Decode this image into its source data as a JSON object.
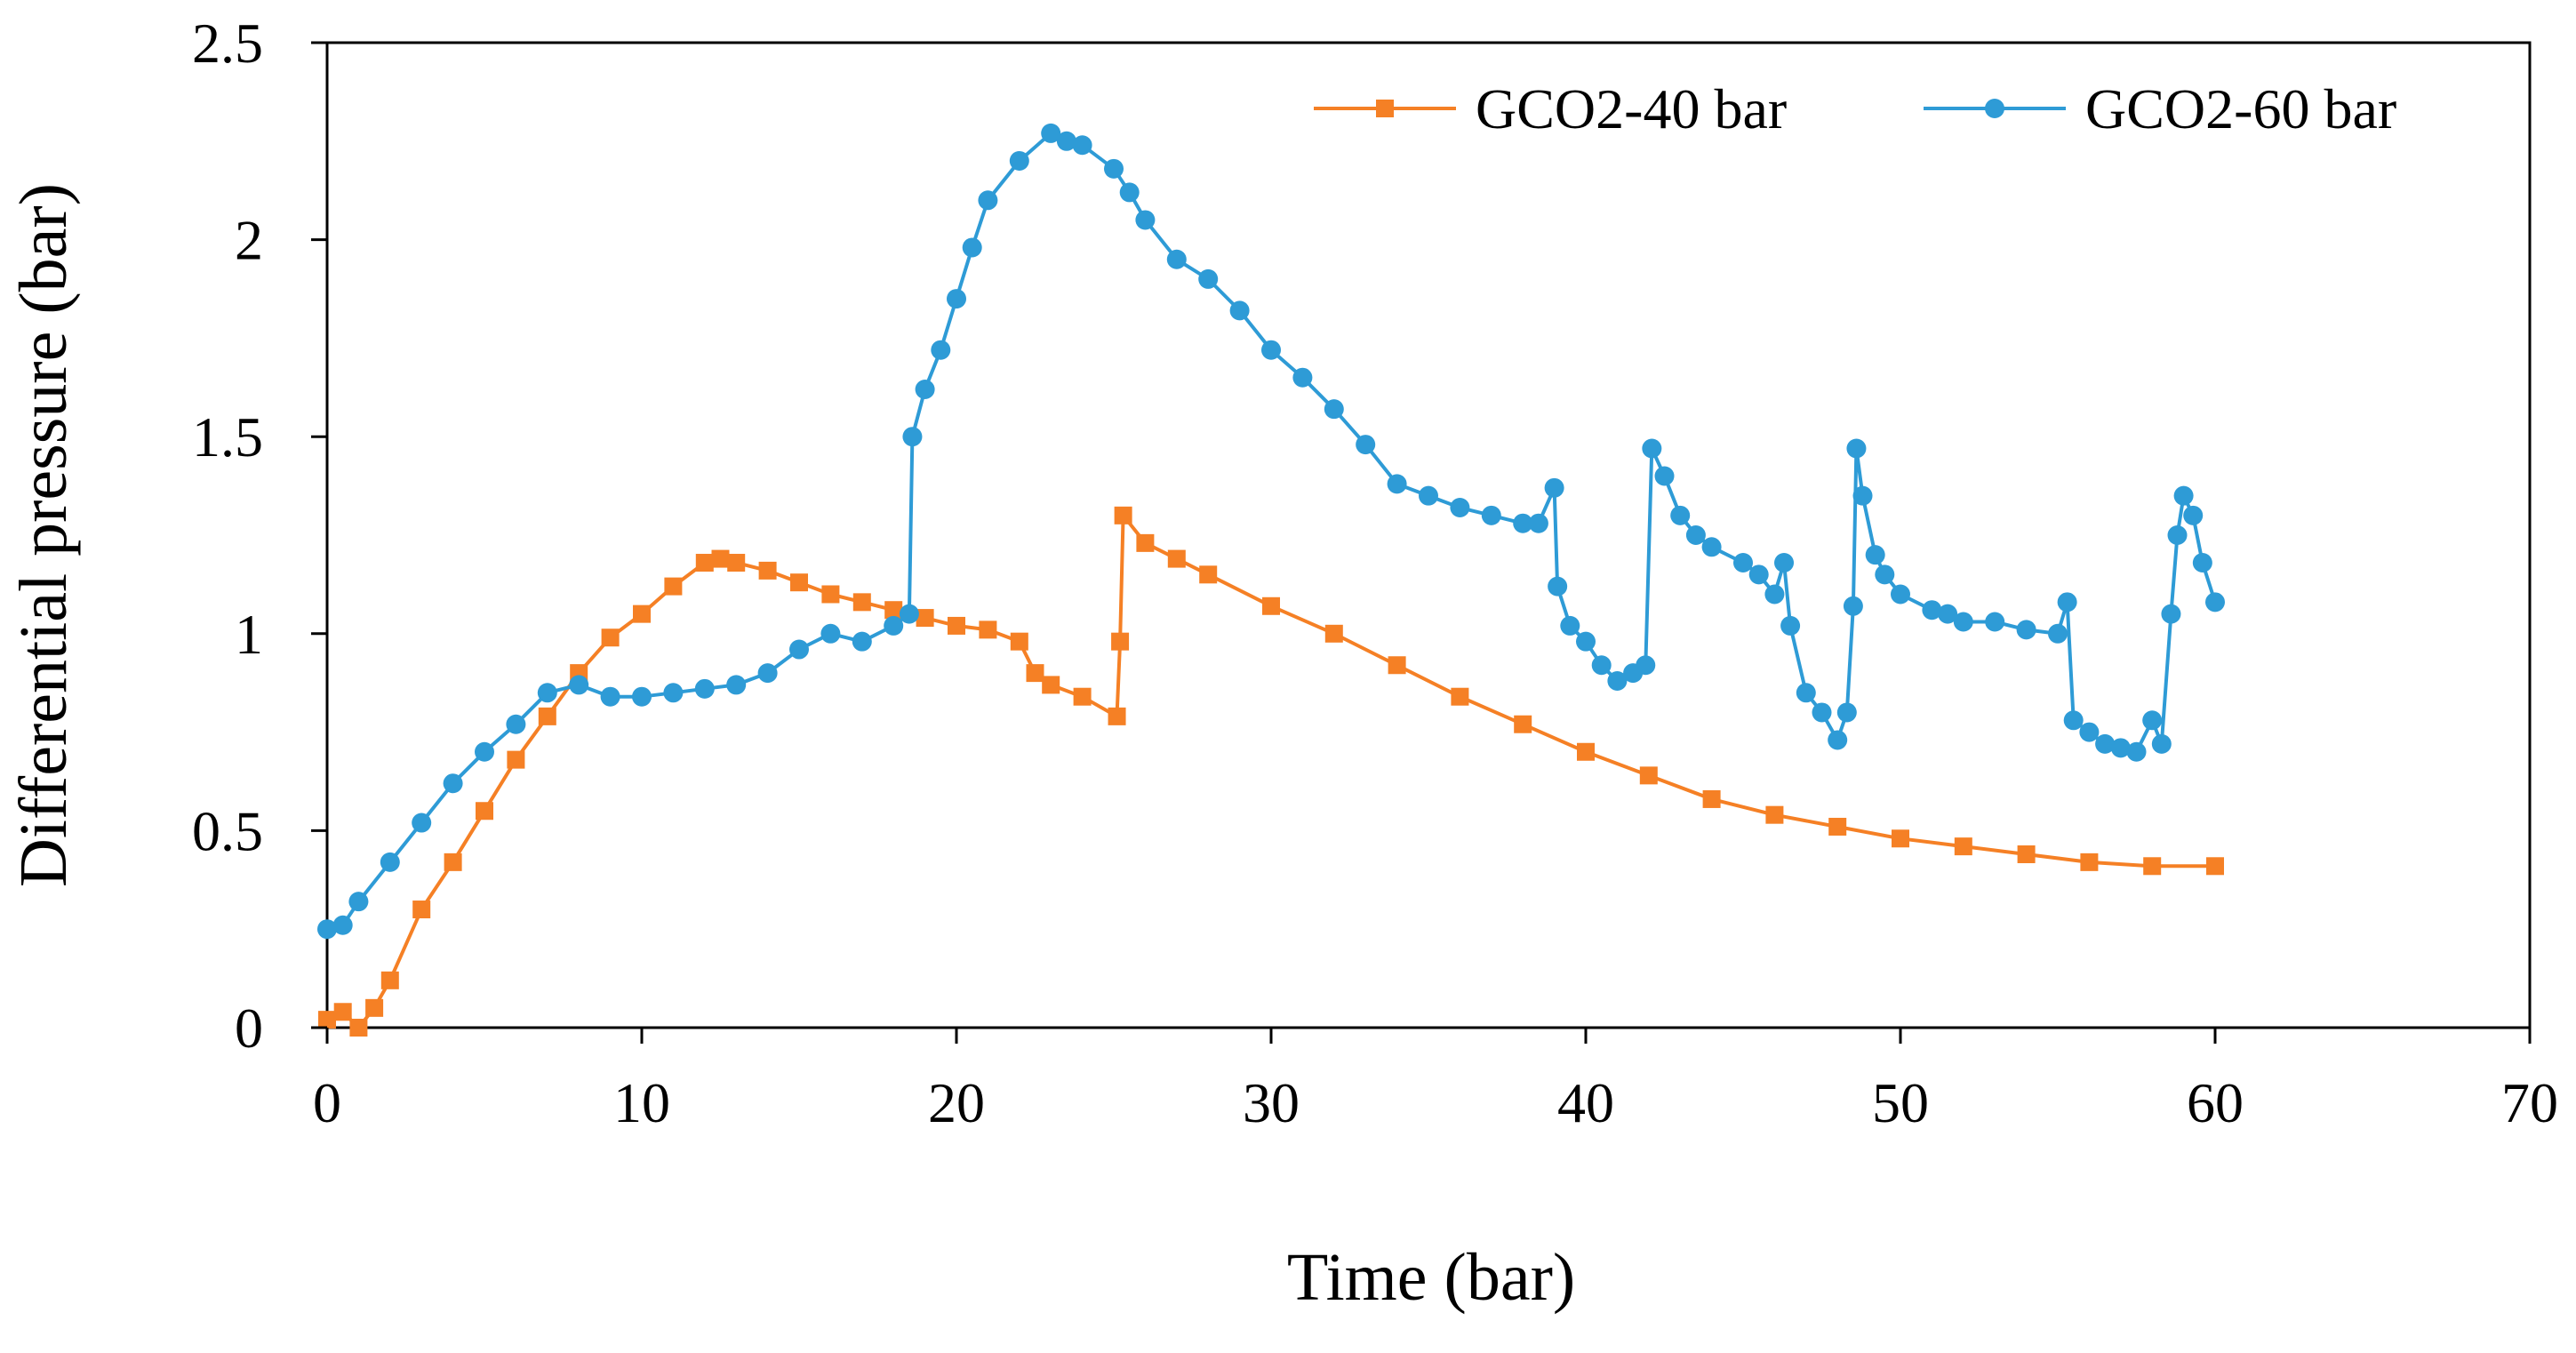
{
  "chart_data": {
    "type": "line",
    "title": "",
    "xlabel": "Time (bar)",
    "ylabel": "Differential pressure (bar)",
    "xlim": [
      0,
      70
    ],
    "ylim": [
      0,
      2.5
    ],
    "x_ticks": [
      "0",
      "10",
      "20",
      "30",
      "40",
      "50",
      "60",
      "70"
    ],
    "y_ticks": [
      "0",
      "0.5",
      "1",
      "1.5",
      "2",
      "2.5"
    ],
    "grid": false,
    "legend_position": "top-right",
    "series": [
      {
        "name": "GCO2-40 bar",
        "color": "#F58025",
        "marker": "square",
        "x": [
          0,
          0.5,
          1.0,
          1.5,
          2,
          3,
          4,
          5,
          6,
          7,
          8,
          9,
          10,
          11,
          12,
          12.5,
          13,
          14,
          15,
          16,
          17,
          18,
          19,
          20,
          21,
          22,
          22.5,
          23,
          24,
          25.1,
          25.2,
          25.3,
          26,
          27,
          28,
          30,
          32,
          34,
          36,
          38,
          40,
          42,
          44,
          46,
          48,
          50,
          52,
          54,
          56,
          58,
          60
        ],
        "y": [
          0.02,
          0.04,
          0.0,
          0.05,
          0.12,
          0.3,
          0.42,
          0.55,
          0.68,
          0.79,
          0.9,
          0.99,
          1.05,
          1.12,
          1.18,
          1.19,
          1.18,
          1.16,
          1.13,
          1.1,
          1.08,
          1.06,
          1.04,
          1.02,
          1.01,
          0.98,
          0.9,
          0.87,
          0.84,
          0.79,
          0.98,
          1.3,
          1.23,
          1.19,
          1.15,
          1.07,
          1.0,
          0.92,
          0.84,
          0.77,
          0.7,
          0.64,
          0.58,
          0.54,
          0.51,
          0.48,
          0.46,
          0.44,
          0.42,
          0.41,
          0.41
        ]
      },
      {
        "name": "GCO2-60 bar",
        "color": "#2E9BD6",
        "marker": "circle",
        "x": [
          0,
          0.5,
          1,
          2,
          3,
          4,
          5,
          6,
          7,
          8,
          9,
          10,
          11,
          12,
          13,
          14,
          15,
          16,
          17,
          18,
          18.5,
          18.6,
          19,
          19.5,
          20,
          20.5,
          21,
          22,
          23,
          23.5,
          24,
          25,
          25.5,
          26,
          27,
          28,
          29,
          30,
          31,
          32,
          33,
          34,
          35,
          36,
          37,
          38,
          38.5,
          39,
          39.1,
          39.5,
          40,
          40.5,
          41,
          41.5,
          41.9,
          42.1,
          42.5,
          43,
          43.5,
          44,
          45,
          45.5,
          46,
          46.3,
          46.5,
          47,
          47.5,
          48,
          48.3,
          48.5,
          48.6,
          48.8,
          49.2,
          49.5,
          50,
          51,
          51.5,
          52,
          53,
          54,
          55,
          55.3,
          55.5,
          56,
          56.5,
          57,
          57.5,
          58,
          58.3,
          58.6,
          58.8,
          59,
          59.3,
          59.6,
          60
        ],
        "y": [
          0.25,
          0.26,
          0.32,
          0.42,
          0.52,
          0.62,
          0.7,
          0.77,
          0.85,
          0.87,
          0.84,
          0.84,
          0.85,
          0.86,
          0.87,
          0.9,
          0.96,
          1.0,
          0.98,
          1.02,
          1.05,
          1.5,
          1.62,
          1.72,
          1.85,
          1.98,
          2.1,
          2.2,
          2.27,
          2.25,
          2.24,
          2.18,
          2.12,
          2.05,
          1.95,
          1.9,
          1.82,
          1.72,
          1.65,
          1.57,
          1.48,
          1.38,
          1.35,
          1.32,
          1.3,
          1.28,
          1.28,
          1.37,
          1.12,
          1.02,
          0.98,
          0.92,
          0.88,
          0.9,
          0.92,
          1.47,
          1.4,
          1.3,
          1.25,
          1.22,
          1.18,
          1.15,
          1.1,
          1.18,
          1.02,
          0.85,
          0.8,
          0.73,
          0.8,
          1.07,
          1.47,
          1.35,
          1.2,
          1.15,
          1.1,
          1.06,
          1.05,
          1.03,
          1.03,
          1.01,
          1.0,
          1.08,
          0.78,
          0.75,
          0.72,
          0.71,
          0.7,
          0.78,
          0.72,
          1.05,
          1.25,
          1.35,
          1.3,
          1.18,
          1.08
        ]
      }
    ]
  }
}
